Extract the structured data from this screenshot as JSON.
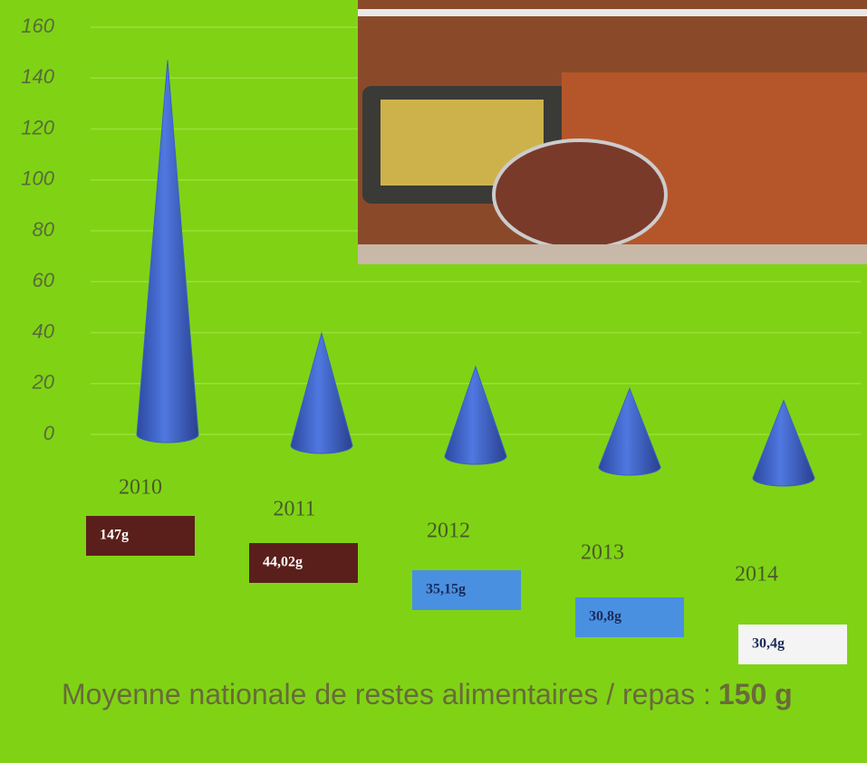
{
  "chart_data": {
    "type": "cone",
    "categories": [
      "2010",
      "2011",
      "2012",
      "2013",
      "2014"
    ],
    "values": [
      147,
      44.02,
      35.15,
      30.8,
      30.4
    ],
    "value_labels": [
      "147g",
      "44,02g",
      "35,15g",
      "30,8g",
      "30,4g"
    ],
    "value_label_colors": [
      "#5a1f1a",
      "#5a1f1a",
      "#4a90e0",
      "#4a90e0",
      "#f4f4f4"
    ],
    "color": "#3a5fc8",
    "ylim": [
      0,
      160
    ],
    "yticks": [
      0,
      20,
      40,
      60,
      80,
      100,
      120,
      140,
      160
    ],
    "grid": true,
    "note": "Moyenne nationale de restes alimentaires / repas :",
    "note_value": "150 g"
  }
}
